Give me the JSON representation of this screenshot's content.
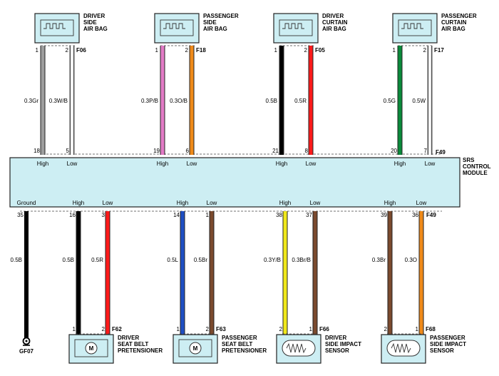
{
  "top_components": [
    {
      "id": "driver_air_bag",
      "name_lines": [
        "DRIVER",
        "SIDE",
        "AIR BAG"
      ],
      "connector": "F06",
      "pins": [
        "1",
        "2"
      ],
      "wires": [
        {
          "label": "0.3Gr",
          "color": "#9e9e9e",
          "outlined": false
        },
        {
          "label": "0.3W/B",
          "color": "#ffffff",
          "outlined": true
        }
      ],
      "module_pins": [
        "18",
        "5"
      ],
      "signals": [
        "High",
        "Low"
      ]
    },
    {
      "id": "passenger_air_bag",
      "name_lines": [
        "PASSENGER",
        "SIDE",
        "AIR BAG"
      ],
      "connector": "F18",
      "pins": [
        "1",
        "2"
      ],
      "wires": [
        {
          "label": "0.3P/B",
          "color": "#e27bc6",
          "outlined": false
        },
        {
          "label": "0.3O/B",
          "color": "#ef8a1a",
          "outlined": false
        }
      ],
      "module_pins": [
        "19",
        "6"
      ],
      "signals": [
        "High",
        "Low"
      ]
    },
    {
      "id": "driver_curtain",
      "name_lines": [
        "DRIVER",
        "CURTAIN",
        "AIR BAG"
      ],
      "connector": "F05",
      "pins": [
        "1",
        "2"
      ],
      "wires": [
        {
          "label": "0.5B",
          "color": "#000000",
          "outlined": false
        },
        {
          "label": "0.5R",
          "color": "#ff1a1a",
          "outlined": false
        }
      ],
      "module_pins": [
        "21",
        "8"
      ],
      "signals": [
        "High",
        "Low"
      ]
    },
    {
      "id": "passenger_curtain",
      "name_lines": [
        "PASSENGER",
        "CURTAIN",
        "AIR BAG"
      ],
      "connector": "F17",
      "pins": [
        "1",
        "2"
      ],
      "wires": [
        {
          "label": "0.5G",
          "color": "#0a8a3a",
          "outlined": false
        },
        {
          "label": "0.5W",
          "color": "#ffffff",
          "outlined": true
        }
      ],
      "module_pins": [
        "20",
        "7"
      ],
      "signals": [
        "High",
        "Low"
      ]
    }
  ],
  "module": {
    "name_lines": [
      "SRS",
      "CONTROL",
      "MODULE"
    ],
    "top_connector": "F49",
    "bottom_connector": "F49",
    "fill": "#cdeef3"
  },
  "ground": {
    "signal": "Ground",
    "pin": "35",
    "wire": {
      "label": "0.5B",
      "color": "#000000"
    },
    "ground_label": "GF07"
  },
  "bottom_components": [
    {
      "id": "driver_pretensioner",
      "name_lines": [
        "DRIVER",
        "SEAT BELT",
        "PRETENSIONER"
      ],
      "connector": "F62",
      "pins": [
        "1",
        "2"
      ],
      "symbol": "motor",
      "symbol_label": "M",
      "wires": [
        {
          "label": "0.5B",
          "color": "#000000",
          "outlined": false
        },
        {
          "label": "0.5R",
          "color": "#ff1a1a",
          "outlined": false
        }
      ],
      "module_pins": [
        "16",
        "3"
      ],
      "signals": [
        "High",
        "Low"
      ]
    },
    {
      "id": "passenger_pretensioner",
      "name_lines": [
        "PASSENGER",
        "SEAT BELT",
        "PRETENSIONER"
      ],
      "connector": "F63",
      "pins": [
        "1",
        "2"
      ],
      "symbol": "motor",
      "symbol_label": "M",
      "wires": [
        {
          "label": "0.5L",
          "color": "#1f4fc4",
          "outlined": false
        },
        {
          "label": "0.5Br",
          "color": "#7b4a2e",
          "outlined": false
        }
      ],
      "module_pins": [
        "14",
        "1"
      ],
      "signals": [
        "High",
        "Low"
      ]
    },
    {
      "id": "driver_impact_sensor",
      "name_lines": [
        "DRIVER",
        "SIDE IMPACT",
        "SENSOR"
      ],
      "connector": "F66",
      "pins": [
        "2",
        "1"
      ],
      "symbol": "sensor",
      "wires": [
        {
          "label": "0.3Y/B",
          "color": "#f0e81a",
          "outlined": false
        },
        {
          "label": "0.3Br/B",
          "color": "#7b4a2e",
          "outlined": false
        }
      ],
      "module_pins": [
        "38",
        "37"
      ],
      "signals": [
        "High",
        "Low"
      ]
    },
    {
      "id": "passenger_impact_sensor",
      "name_lines": [
        "PASSENGER",
        "SIDE IMPACT",
        "SENSOR"
      ],
      "connector": "F68",
      "pins": [
        "2",
        "1"
      ],
      "symbol": "sensor",
      "wires": [
        {
          "label": "0.3Br",
          "color": "#7b4a2e",
          "outlined": false
        },
        {
          "label": "0.3O",
          "color": "#ef8a1a",
          "outlined": false
        }
      ],
      "module_pins": [
        "39",
        "36"
      ],
      "signals": [
        "High",
        "Low"
      ]
    }
  ]
}
